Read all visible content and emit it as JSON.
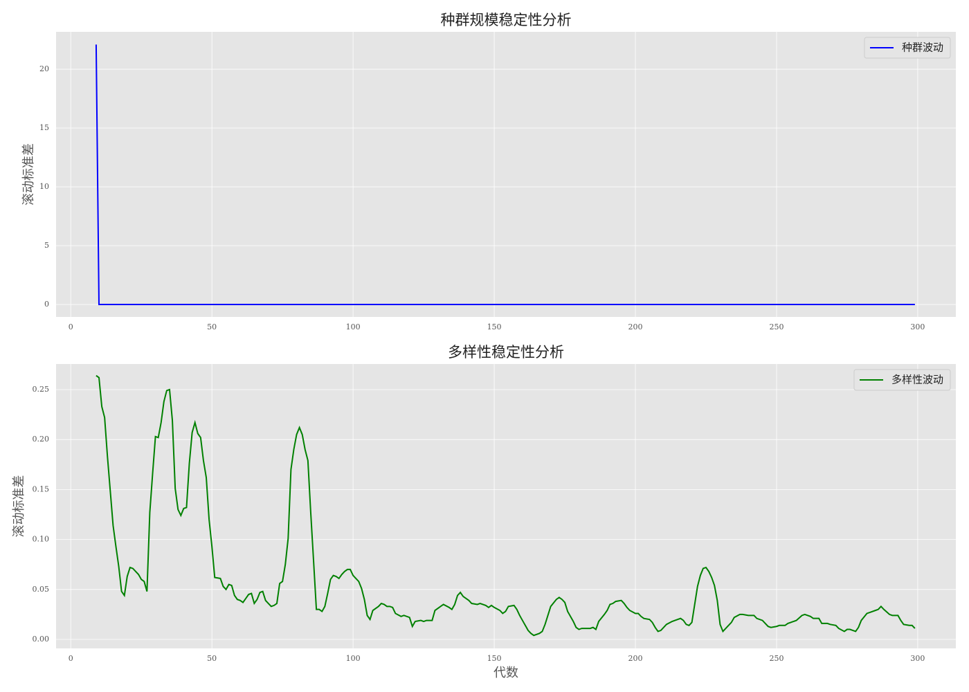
{
  "chart_data": [
    {
      "type": "line",
      "title": "种群规模稳定性分析",
      "ylabel": "滚动标准差",
      "x": [
        9,
        10,
        299
      ],
      "series": [
        {
          "name": "种群波动",
          "color": "#0000ff",
          "values": [
            22.1,
            0,
            0
          ]
        }
      ],
      "xlim": [
        -5.2,
        313.5
      ],
      "xticks": [
        0,
        50,
        100,
        150,
        200,
        250,
        300
      ],
      "ylim": [
        -1.06,
        23.18
      ],
      "yticks": [
        0,
        5,
        10,
        15,
        20
      ],
      "grid": true,
      "legend": "upper right"
    },
    {
      "type": "line",
      "title": "多样性稳定性分析",
      "ylabel": "滚动标准差",
      "xlabel": "代数",
      "x": [
        9,
        10,
        11,
        12,
        13,
        15,
        16,
        17,
        18,
        19,
        20,
        21,
        22,
        23,
        24,
        25,
        26,
        27,
        28,
        29,
        30,
        31,
        32,
        33,
        34,
        35,
        36,
        37,
        38,
        39,
        40,
        41,
        42,
        43,
        44,
        45,
        46,
        47,
        48,
        49,
        50,
        51,
        53,
        54,
        55,
        56,
        57,
        58,
        59,
        60,
        61,
        62,
        63,
        64,
        65,
        66,
        67,
        68,
        69,
        70,
        71,
        72,
        73,
        74,
        75,
        76,
        77,
        78,
        79,
        80,
        81,
        82,
        83,
        84,
        85,
        86,
        87,
        88,
        89,
        90,
        91,
        92,
        93,
        94,
        95,
        96,
        97,
        98,
        99,
        100,
        101,
        102,
        103,
        104,
        105,
        106,
        107,
        109,
        110,
        111,
        112,
        113,
        114,
        115,
        117,
        118,
        120,
        121,
        122,
        124,
        125,
        126,
        128,
        129,
        131,
        132,
        134,
        135,
        136,
        137,
        138,
        139,
        141,
        142,
        144,
        145,
        147,
        148,
        149,
        150,
        152,
        153,
        154,
        155,
        157,
        158,
        159,
        160,
        162,
        163,
        164,
        166,
        167,
        168,
        169,
        170,
        172,
        173,
        174,
        175,
        176,
        178,
        179,
        180,
        181,
        183,
        184,
        185,
        186,
        187,
        189,
        190,
        191,
        192,
        193,
        195,
        196,
        197,
        198,
        200,
        201,
        202,
        203,
        205,
        206,
        207,
        208,
        209,
        210,
        211,
        213,
        214,
        216,
        217,
        218,
        219,
        220,
        221,
        222,
        223,
        224,
        225,
        226,
        227,
        228,
        229,
        230,
        231,
        232,
        234,
        235,
        237,
        238,
        240,
        242,
        243,
        245,
        246,
        247,
        248,
        250,
        251,
        253,
        254,
        256,
        257,
        259,
        260,
        262,
        263,
        265,
        266,
        268,
        269,
        271,
        272,
        274,
        275,
        276,
        278,
        279,
        280,
        282,
        283,
        285,
        286,
        287,
        288,
        290,
        291,
        293,
        294,
        295,
        297,
        298,
        299
      ],
      "series": [
        {
          "name": "多样性波动",
          "color": "#008000",
          "values": [
            0.264,
            0.262,
            0.233,
            0.222,
            0.183,
            0.114,
            0.093,
            0.073,
            0.048,
            0.044,
            0.063,
            0.072,
            0.071,
            0.068,
            0.065,
            0.06,
            0.058,
            0.048,
            0.127,
            0.166,
            0.203,
            0.202,
            0.217,
            0.238,
            0.249,
            0.25,
            0.219,
            0.151,
            0.13,
            0.124,
            0.131,
            0.132,
            0.176,
            0.207,
            0.217,
            0.206,
            0.202,
            0.179,
            0.162,
            0.12,
            0.093,
            0.062,
            0.061,
            0.053,
            0.05,
            0.055,
            0.054,
            0.044,
            0.04,
            0.039,
            0.037,
            0.041,
            0.045,
            0.046,
            0.036,
            0.04,
            0.047,
            0.048,
            0.039,
            0.036,
            0.033,
            0.034,
            0.036,
            0.056,
            0.058,
            0.075,
            0.101,
            0.17,
            0.19,
            0.205,
            0.212,
            0.205,
            0.19,
            0.179,
            0.127,
            0.079,
            0.03,
            0.03,
            0.028,
            0.033,
            0.046,
            0.06,
            0.064,
            0.063,
            0.061,
            0.065,
            0.068,
            0.07,
            0.07,
            0.064,
            0.061,
            0.058,
            0.051,
            0.04,
            0.024,
            0.02,
            0.029,
            0.033,
            0.036,
            0.035,
            0.033,
            0.033,
            0.032,
            0.026,
            0.023,
            0.024,
            0.022,
            0.013,
            0.018,
            0.019,
            0.018,
            0.019,
            0.019,
            0.029,
            0.033,
            0.035,
            0.032,
            0.03,
            0.035,
            0.044,
            0.047,
            0.043,
            0.039,
            0.036,
            0.035,
            0.036,
            0.034,
            0.032,
            0.034,
            0.032,
            0.029,
            0.026,
            0.028,
            0.033,
            0.034,
            0.03,
            0.024,
            0.019,
            0.009,
            0.006,
            0.004,
            0.006,
            0.008,
            0.015,
            0.024,
            0.033,
            0.04,
            0.042,
            0.04,
            0.037,
            0.028,
            0.018,
            0.012,
            0.01,
            0.011,
            0.011,
            0.011,
            0.012,
            0.01,
            0.018,
            0.025,
            0.029,
            0.035,
            0.036,
            0.038,
            0.039,
            0.036,
            0.032,
            0.029,
            0.026,
            0.026,
            0.023,
            0.021,
            0.02,
            0.017,
            0.012,
            0.008,
            0.009,
            0.012,
            0.015,
            0.018,
            0.019,
            0.021,
            0.019,
            0.015,
            0.014,
            0.017,
            0.035,
            0.053,
            0.064,
            0.071,
            0.072,
            0.068,
            0.062,
            0.054,
            0.039,
            0.015,
            0.008,
            0.011,
            0.017,
            0.022,
            0.025,
            0.025,
            0.024,
            0.024,
            0.021,
            0.019,
            0.016,
            0.013,
            0.012,
            0.013,
            0.014,
            0.014,
            0.016,
            0.018,
            0.019,
            0.024,
            0.025,
            0.023,
            0.021,
            0.021,
            0.016,
            0.016,
            0.015,
            0.014,
            0.011,
            0.008,
            0.01,
            0.01,
            0.008,
            0.012,
            0.019,
            0.026,
            0.027,
            0.029,
            0.03,
            0.033,
            0.03,
            0.025,
            0.024,
            0.024,
            0.019,
            0.015,
            0.014,
            0.014,
            0.011
          ]
        }
      ],
      "xlim": [
        -5.2,
        313.5
      ],
      "xticks": [
        0,
        50,
        100,
        150,
        200,
        250,
        300
      ],
      "ylim": [
        -0.009,
        0.2756
      ],
      "yticks": [
        {
          "value": 0,
          "label": "0.00"
        },
        0.05,
        {
          "value": 0.1,
          "label": "0.10"
        },
        0.15,
        {
          "value": 0.2,
          "label": "0.20"
        },
        0.25
      ],
      "grid": true,
      "legend": "upper right"
    }
  ]
}
